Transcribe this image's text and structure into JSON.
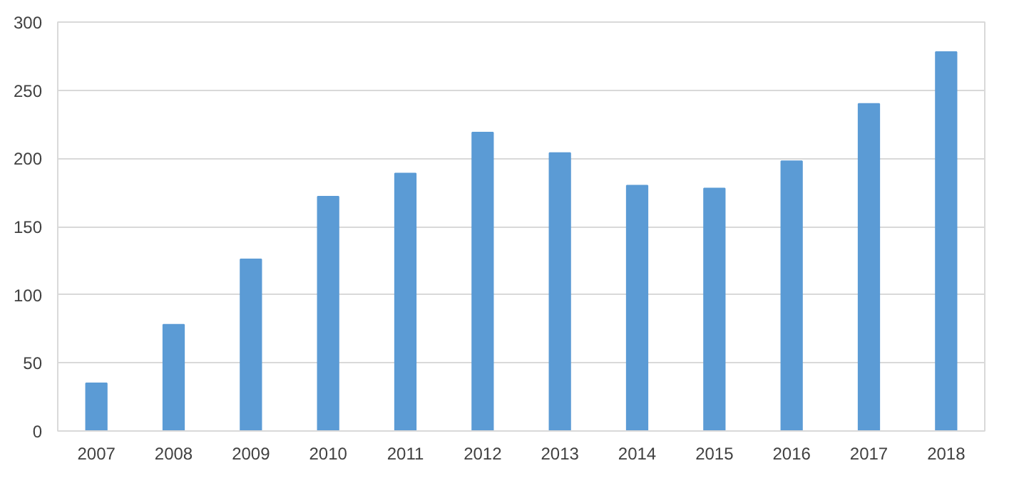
{
  "chart_data": {
    "type": "bar",
    "categories": [
      "2007",
      "2008",
      "2009",
      "2010",
      "2011",
      "2012",
      "2013",
      "2014",
      "2015",
      "2016",
      "2017",
      "2018"
    ],
    "values": [
      35,
      78,
      126,
      172,
      189,
      219,
      204,
      180,
      178,
      198,
      240,
      278
    ],
    "color": "#5b9bd5",
    "ylim": [
      0,
      300
    ],
    "yticks": [
      0,
      50,
      100,
      150,
      200,
      250,
      300
    ],
    "grid": "y"
  }
}
